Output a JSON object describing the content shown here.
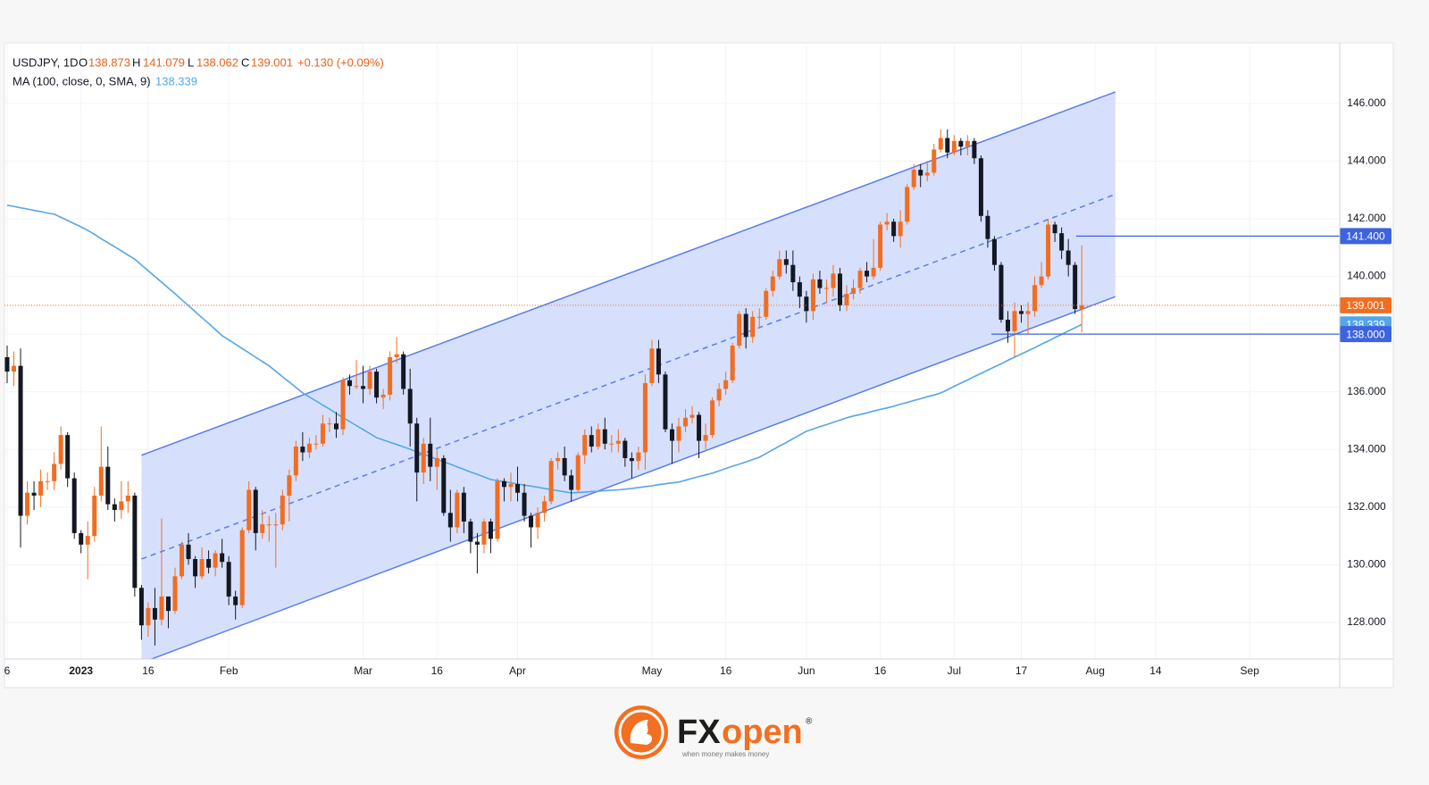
{
  "chart_data": {
    "type": "candlestick",
    "symbol": "USDJPY, 1D",
    "ohlc_labels": [
      "O",
      "H",
      "L",
      "C"
    ],
    "change": "+0.130 (+0.09%)",
    "categories": [
      "6",
      null,
      null,
      null,
      null,
      null,
      null,
      null,
      null,
      null,
      null,
      "2023",
      null,
      null,
      null,
      null,
      null,
      null,
      null,
      null,
      null,
      "16",
      null,
      null,
      null,
      null,
      null,
      null,
      null,
      null,
      null,
      null,
      null,
      "Feb",
      null,
      null,
      null,
      null,
      null,
      null,
      null,
      null,
      null,
      null,
      null,
      null,
      null,
      null,
      null,
      null,
      null,
      null,
      null,
      "Mar",
      null,
      null,
      null,
      null,
      null,
      null,
      null,
      null,
      null,
      null,
      "16",
      null,
      null,
      null,
      null,
      null,
      null,
      null,
      null,
      null,
      null,
      null,
      "Apr",
      null,
      null,
      null,
      null,
      null,
      null,
      null,
      null,
      null,
      null,
      null,
      null,
      null,
      null,
      null,
      null,
      null,
      null,
      null,
      "May",
      null,
      null,
      null,
      null,
      null,
      null,
      null,
      null,
      null,
      null,
      "16",
      null,
      null,
      null,
      null,
      null,
      null,
      null,
      null,
      null,
      null,
      null,
      "Jun",
      null,
      null,
      null,
      null,
      null,
      null,
      null,
      null,
      null,
      null,
      "16",
      null,
      null,
      null,
      null,
      null,
      null,
      null,
      null,
      null,
      null,
      "Jul",
      null,
      null,
      null,
      null,
      null,
      null,
      null,
      null,
      null,
      "17",
      null,
      null,
      null,
      null,
      null,
      null,
      null,
      null,
      null,
      null,
      "Aug",
      null,
      null,
      null,
      null,
      null,
      null,
      null,
      null,
      "14",
      null,
      null,
      null,
      null,
      null,
      null,
      null,
      null,
      null,
      null,
      null,
      null,
      null,
      "Sep"
    ],
    "open": [
      137.2,
      136.7,
      136.9,
      131.7,
      132.5,
      132.4,
      132.9,
      132.9,
      133.5,
      134.5,
      133.0,
      131.1,
      130.7,
      131.0,
      132.4,
      133.4,
      132.1,
      131.9,
      132.2,
      132.4,
      129.2,
      127.9,
      128.5,
      128.1,
      128.9,
      128.4,
      129.6,
      130.7,
      130.2,
      129.6,
      130.2,
      129.9,
      130.4,
      130.1,
      128.9,
      128.6,
      131.2,
      132.6,
      131.1,
      131.4,
      131.4,
      131.4,
      132.4,
      133.1,
      134.1,
      133.9,
      134.2,
      134.2,
      134.9,
      134.9,
      134.7,
      136.4,
      136.2,
      136.2,
      136.1,
      136.7,
      135.8,
      135.9,
      137.2,
      137.3,
      136.1,
      134.9,
      133.2,
      134.2,
      133.4,
      133.7,
      131.8,
      131.3,
      132.5,
      131.5,
      130.8,
      130.7,
      131.5,
      130.9,
      132.9,
      132.7,
      132.8,
      132.5,
      131.7,
      131.3,
      131.8,
      132.2,
      133.6,
      133.7,
      133.1,
      132.6,
      133.8,
      134.5,
      134.1,
      134.7,
      134.2,
      134.2,
      134.3,
      133.7,
      133.6,
      133.9,
      136.3,
      137.5,
      136.6,
      134.7,
      134.3,
      134.8,
      135.1,
      135.2,
      134.3,
      134.5,
      135.7,
      136.1,
      136.4,
      137.6,
      138.7,
      137.9,
      138.6,
      138.6,
      139.5,
      140.0,
      140.6,
      140.4,
      139.8,
      139.3,
      138.8,
      139.9,
      139.6,
      139.6,
      140.1,
      139.0,
      139.4,
      139.6,
      140.2,
      140.0,
      140.3,
      141.8,
      141.9,
      141.4,
      141.9,
      143.1,
      143.7,
      143.5,
      143.6,
      144.4,
      144.8,
      144.3,
      144.7,
      144.5,
      144.7,
      144.1,
      142.1,
      141.3,
      140.4,
      138.5,
      138.1,
      138.8,
      138.7,
      138.8,
      139.7,
      140.0,
      141.8,
      141.5,
      140.9,
      140.4,
      138.873,
      null,
      null,
      null,
      null,
      null,
      null,
      null,
      null,
      null,
      null,
      null,
      null,
      null,
      null,
      null,
      null,
      null,
      null,
      null,
      null,
      null,
      null,
      null,
      null,
      null
    ],
    "high": [
      137.6,
      137.4,
      137.5,
      132.9,
      132.9,
      133.3,
      133.2,
      133.9,
      134.8,
      134.6,
      133.2,
      131.2,
      131.5,
      132.7,
      134.8,
      134.1,
      132.3,
      132.9,
      132.9,
      132.5,
      129.3,
      128.7,
      129.2,
      131.6,
      128.9,
      129.9,
      130.8,
      131.1,
      130.3,
      130.6,
      130.5,
      130.5,
      130.9,
      130.3,
      129.1,
      131.3,
      132.9,
      132.7,
      131.9,
      131.7,
      131.8,
      132.6,
      133.3,
      134.3,
      134.6,
      134.4,
      134.5,
      135.2,
      135.1,
      135.3,
      136.5,
      136.6,
      137.1,
      136.9,
      136.9,
      136.8,
      136.1,
      137.4,
      137.9,
      137.4,
      136.8,
      135.1,
      134.4,
      135.1,
      134.0,
      133.8,
      132.6,
      132.6,
      132.7,
      131.6,
      131.1,
      131.6,
      131.6,
      133.0,
      133.0,
      133.2,
      133.4,
      132.8,
      131.8,
      132.0,
      132.4,
      133.7,
      133.9,
      134.1,
      133.3,
      133.9,
      134.7,
      134.8,
      134.9,
      135.1,
      134.5,
      134.7,
      134.4,
      133.9,
      134.1,
      136.6,
      137.8,
      137.8,
      136.7,
      134.9,
      135.1,
      135.4,
      135.5,
      135.3,
      134.9,
      135.8,
      136.3,
      136.7,
      137.7,
      138.8,
      138.9,
      138.8,
      138.9,
      139.6,
      140.2,
      140.9,
      140.9,
      140.9,
      140.0,
      139.5,
      140.1,
      140.2,
      139.9,
      140.4,
      140.3,
      139.7,
      139.9,
      140.3,
      140.5,
      141.3,
      141.9,
      142.2,
      142.0,
      142.3,
      143.2,
      143.9,
      143.9,
      144.0,
      144.6,
      145.1,
      145.1,
      144.9,
      144.8,
      144.9,
      144.8,
      144.2,
      142.3,
      141.4,
      140.5,
      138.8,
      139.1,
      139.0,
      139.1,
      140.0,
      140.5,
      142.0,
      141.9,
      141.7,
      141.3,
      140.5,
      141.079,
      null,
      null,
      null,
      null,
      null,
      null,
      null,
      null,
      null,
      null,
      null,
      null,
      null,
      null,
      null,
      null,
      null,
      null,
      null,
      null,
      null,
      null,
      null,
      null,
      null
    ],
    "low": [
      136.3,
      136.2,
      130.6,
      131.4,
      131.9,
      132.0,
      132.6,
      132.6,
      133.3,
      132.7,
      130.9,
      130.4,
      129.5,
      130.8,
      132.2,
      131.9,
      131.5,
      131.6,
      131.8,
      128.9,
      127.4,
      127.5,
      127.2,
      127.9,
      127.8,
      128.3,
      129.5,
      130.0,
      129.2,
      129.5,
      129.7,
      129.6,
      129.9,
      128.6,
      128.1,
      128.5,
      131.1,
      130.5,
      130.9,
      130.8,
      129.9,
      131.2,
      131.5,
      132.9,
      133.6,
      133.7,
      134.0,
      134.1,
      134.6,
      134.4,
      134.5,
      135.9,
      136.1,
      135.6,
      135.9,
      135.6,
      135.4,
      135.7,
      137.0,
      135.9,
      134.1,
      132.2,
      132.8,
      132.9,
      132.6,
      131.7,
      130.8,
      131.1,
      131.1,
      130.4,
      129.7,
      130.4,
      130.4,
      130.8,
      132.2,
      132.2,
      132.2,
      131.5,
      130.6,
      130.9,
      131.5,
      132.1,
      133.3,
      132.9,
      132.2,
      132.5,
      133.5,
      133.9,
      134.0,
      134.0,
      133.9,
      133.9,
      133.4,
      133.0,
      133.3,
      133.3,
      136.2,
      136.3,
      134.6,
      133.5,
      133.9,
      134.6,
      134.9,
      133.7,
      134.0,
      134.4,
      135.5,
      135.9,
      136.3,
      137.5,
      137.5,
      137.7,
      138.2,
      138.5,
      139.3,
      139.9,
      140.1,
      139.5,
      138.9,
      138.4,
      138.5,
      139.4,
      139.1,
      139.3,
      138.8,
      138.8,
      139.2,
      139.4,
      139.8,
      139.9,
      140.2,
      141.6,
      141.2,
      141.0,
      141.8,
      143.0,
      143.1,
      143.3,
      143.5,
      144.3,
      144.1,
      144.2,
      144.2,
      144.2,
      143.9,
      141.9,
      141.0,
      140.2,
      138.4,
      137.7,
      137.2,
      138.4,
      138.0,
      138.6,
      139.6,
      139.9,
      141.2,
      140.6,
      140.0,
      138.7,
      138.062,
      null,
      null,
      null,
      null,
      null,
      null,
      null,
      null,
      null,
      null,
      null,
      null,
      null,
      null,
      null,
      null,
      null,
      null,
      null,
      null,
      null,
      null,
      null,
      null,
      null
    ],
    "close": [
      136.7,
      136.9,
      131.7,
      132.5,
      132.4,
      132.9,
      132.9,
      133.5,
      134.5,
      133.0,
      131.1,
      130.7,
      131.0,
      132.4,
      133.4,
      132.1,
      131.9,
      132.2,
      132.4,
      129.2,
      127.9,
      128.5,
      128.1,
      128.9,
      128.4,
      129.6,
      130.7,
      130.2,
      129.6,
      130.2,
      129.9,
      130.4,
      130.1,
      128.9,
      128.6,
      131.2,
      132.6,
      131.1,
      131.4,
      131.4,
      131.4,
      132.4,
      133.1,
      134.1,
      133.9,
      134.2,
      134.2,
      134.9,
      134.9,
      134.7,
      136.4,
      136.2,
      136.2,
      136.1,
      136.7,
      135.8,
      135.9,
      137.2,
      137.3,
      136.1,
      134.9,
      133.2,
      134.2,
      133.4,
      133.7,
      131.8,
      131.3,
      132.5,
      131.5,
      130.8,
      130.7,
      131.5,
      130.9,
      132.9,
      132.7,
      132.8,
      132.5,
      131.7,
      131.3,
      131.8,
      132.2,
      133.6,
      133.7,
      133.1,
      132.6,
      133.8,
      134.5,
      134.1,
      134.7,
      134.2,
      134.2,
      134.3,
      133.7,
      133.6,
      133.9,
      136.3,
      137.5,
      136.6,
      134.7,
      134.3,
      134.8,
      135.1,
      135.2,
      134.3,
      134.5,
      135.7,
      136.1,
      136.4,
      137.6,
      138.7,
      137.9,
      138.6,
      138.6,
      139.5,
      140.0,
      140.6,
      140.4,
      139.8,
      139.3,
      138.8,
      139.9,
      139.6,
      139.6,
      140.1,
      139.0,
      139.4,
      139.6,
      140.2,
      140.0,
      140.3,
      141.8,
      141.9,
      141.4,
      141.9,
      143.1,
      143.7,
      143.5,
      143.6,
      144.4,
      144.8,
      144.3,
      144.7,
      144.5,
      144.7,
      144.1,
      142.1,
      141.3,
      140.4,
      138.5,
      138.1,
      138.8,
      138.7,
      138.8,
      139.7,
      140.0,
      141.8,
      141.5,
      140.9,
      140.4,
      138.87,
      139.001,
      null,
      null,
      null,
      null,
      null,
      null,
      null,
      null,
      null,
      null,
      null,
      null,
      null,
      null,
      null,
      null,
      null,
      null,
      null,
      null,
      null,
      null,
      null,
      null,
      null
    ],
    "up_color": "#f26d21",
    "down_color": "#131722",
    "ma": {
      "name": "MA (100, close, 0, SMA, 9)",
      "color": "#55a6e8",
      "values": [
        142.47,
        142.43,
        142.38,
        142.34,
        142.29,
        142.25,
        142.2,
        142.16,
        142.05,
        141.94,
        141.83,
        141.72,
        141.6,
        141.46,
        141.31,
        141.17,
        141.03,
        140.89,
        140.74,
        140.6,
        140.4,
        140.2,
        140.0,
        139.8,
        139.6,
        139.4,
        139.19,
        138.99,
        138.78,
        138.57,
        138.37,
        138.16,
        137.95,
        137.8,
        137.65,
        137.5,
        137.35,
        137.2,
        137.05,
        136.9,
        136.71,
        136.52,
        136.34,
        136.15,
        135.96,
        135.82,
        135.68,
        135.54,
        135.4,
        135.25,
        135.11,
        134.97,
        134.83,
        134.69,
        134.55,
        134.41,
        134.33,
        134.25,
        134.17,
        134.09,
        134.01,
        133.92,
        133.84,
        133.75,
        133.66,
        133.57,
        133.49,
        133.4,
        133.31,
        133.22,
        133.14,
        133.05,
        132.96,
        132.92,
        132.88,
        132.84,
        132.8,
        132.76,
        132.73,
        132.69,
        132.65,
        132.61,
        132.57,
        132.53,
        132.49,
        132.51,
        132.52,
        132.54,
        132.55,
        132.57,
        132.59,
        132.6,
        132.62,
        132.65,
        132.68,
        132.71,
        132.74,
        132.78,
        132.81,
        132.84,
        132.87,
        132.93,
        133.0,
        133.06,
        133.12,
        133.18,
        133.26,
        133.34,
        133.42,
        133.49,
        133.57,
        133.65,
        133.73,
        133.86,
        133.99,
        134.12,
        134.24,
        134.37,
        134.5,
        134.63,
        134.71,
        134.79,
        134.86,
        134.94,
        135.02,
        135.1,
        135.16,
        135.21,
        135.27,
        135.33,
        135.39,
        135.44,
        135.5,
        135.57,
        135.63,
        135.7,
        135.76,
        135.83,
        135.89,
        135.96,
        136.07,
        136.19,
        136.3,
        136.41,
        136.53,
        136.64,
        136.75,
        136.86,
        136.97,
        137.09,
        137.2,
        137.31,
        137.42,
        137.53,
        137.65,
        137.76,
        137.88,
        137.99,
        138.11,
        138.22,
        138.339,
        null,
        null,
        null,
        null,
        null,
        null,
        null,
        null,
        null,
        null,
        null,
        null,
        null,
        null,
        null,
        null,
        null,
        null,
        null,
        null,
        null,
        null,
        null,
        null,
        null
      ]
    },
    "ylim": [
      126.73,
      148.04
    ],
    "yticks": [
      {
        "value": 128,
        "label": "128.000"
      },
      {
        "value": 130,
        "label": "130.000"
      },
      {
        "value": 132,
        "label": "132.000"
      },
      {
        "value": 134,
        "label": "134.000"
      },
      {
        "value": 136,
        "label": "136.000"
      },
      {
        "value": 138,
        "label": "138.000"
      },
      {
        "value": 140,
        "label": "140.000"
      },
      {
        "value": 142,
        "label": "142.000"
      },
      {
        "value": 144,
        "label": "144.000"
      },
      {
        "value": 146,
        "label": "146.000"
      }
    ],
    "grid": true,
    "channel": {
      "upper": [
        133.8,
        146.4
      ],
      "lower": [
        126.6,
        139.3
      ],
      "color": "#5b7cf0",
      "fill": "#d2ddfd"
    },
    "levels": [
      {
        "value": 141.4,
        "label": "141.400"
      },
      {
        "value": 138,
        "label": "138.000"
      }
    ],
    "level_color": "#3d63e0"
  },
  "footer": {
    "brand_fx": "FX",
    "brand_open": "open",
    "registered": "®",
    "tagline": "when money makes money"
  }
}
